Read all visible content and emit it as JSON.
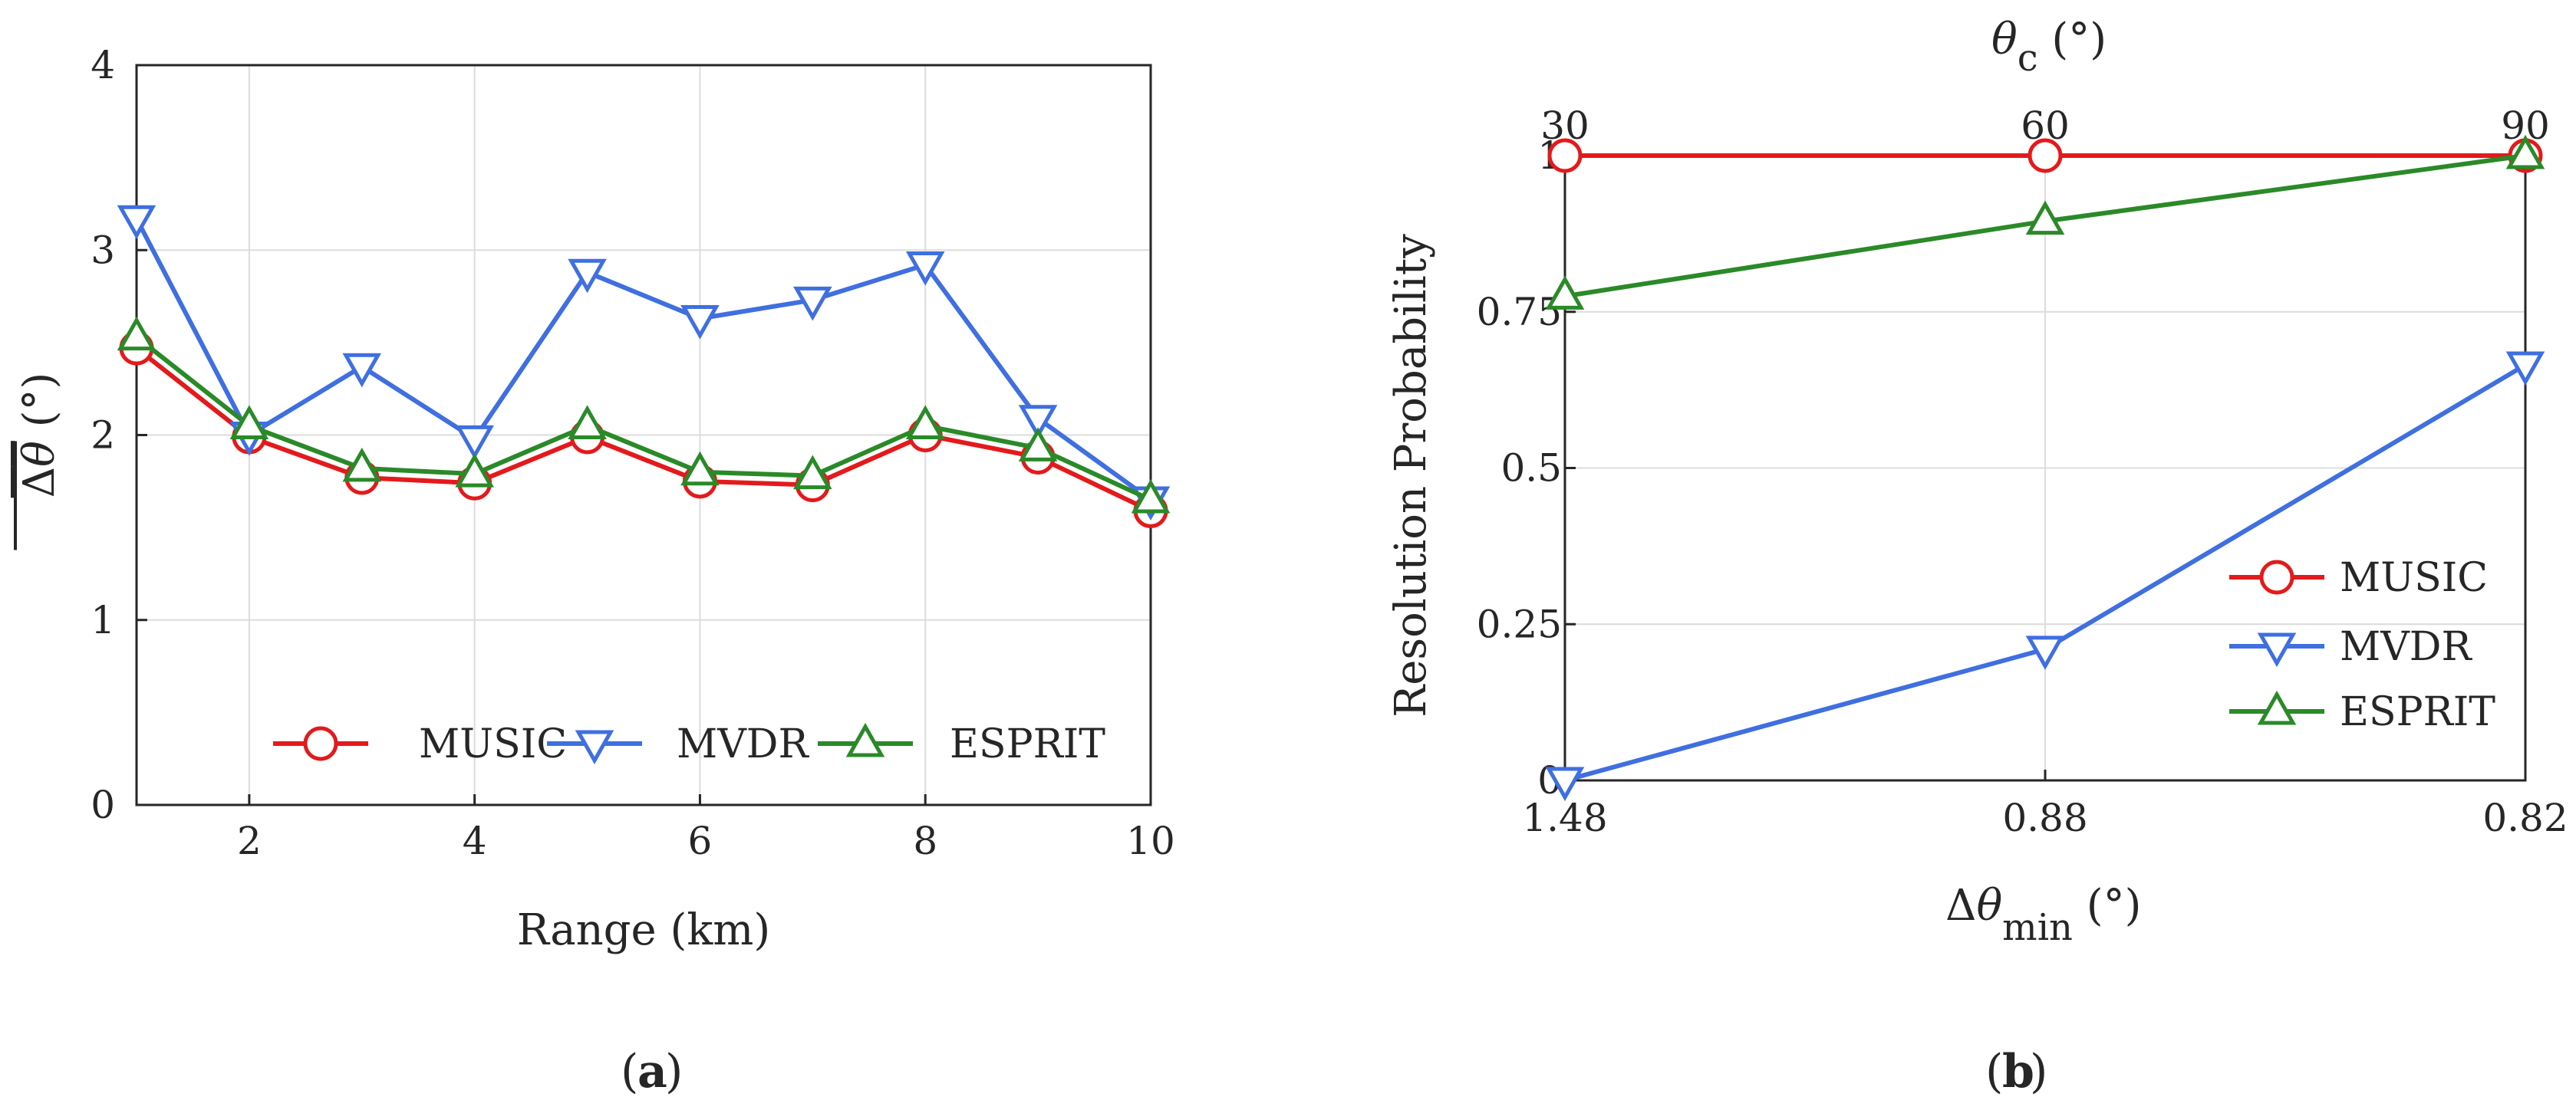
{
  "chart_data": [
    {
      "type": "line",
      "panel_label": "a",
      "xlabel": "Range (km)",
      "ylabel_symbol": "θ",
      "ylabel_prefix": "Δ",
      "ylabel_unit": " (°)",
      "x": [
        1,
        2,
        3,
        4,
        5,
        6,
        7,
        8,
        9,
        10
      ],
      "xlim": [
        1,
        10
      ],
      "ylim": [
        0,
        4
      ],
      "xticks": [
        2,
        4,
        6,
        8,
        10
      ],
      "yticks": [
        0,
        1,
        2,
        3,
        4
      ],
      "grid": true,
      "legend_position": "bottom-center",
      "legend_layout": "horizontal",
      "series": [
        {
          "name": "MUSIC",
          "color": "#e31a1c",
          "marker": "circle",
          "values": [
            2.47,
            1.99,
            1.77,
            1.74,
            1.99,
            1.75,
            1.73,
            2.0,
            1.88,
            1.59
          ]
        },
        {
          "name": "MVDR",
          "color": "#3f6fe0",
          "marker": "triangle-down",
          "values": [
            3.17,
            2.0,
            2.37,
            1.98,
            2.88,
            2.63,
            2.73,
            2.92,
            2.09,
            1.65
          ]
        },
        {
          "name": "ESPRIT",
          "color": "#2a8a28",
          "marker": "triangle-up",
          "values": [
            2.53,
            2.05,
            1.82,
            1.79,
            2.05,
            1.8,
            1.78,
            2.05,
            1.93,
            1.65
          ]
        }
      ]
    },
    {
      "type": "line",
      "panel_label": "b",
      "ylabel": "Resolution Probability",
      "xlabel_prefix": "Δθ",
      "xlabel_sub": "min",
      "xlabel_unit": " (°)",
      "top_xlabel_symbol": "θ",
      "top_xlabel_sub": "c",
      "top_xlabel_unit": " (°)",
      "categories": [
        "1.48",
        "0.88",
        "0.82"
      ],
      "top_categories": [
        "30",
        "60",
        "90"
      ],
      "ylim": [
        0,
        1
      ],
      "yticks": [
        0,
        0.25,
        0.5,
        0.75,
        1
      ],
      "ytick_labels": [
        "0",
        "0.25",
        "0.5",
        "0.75",
        "1"
      ],
      "grid": true,
      "legend_position": "center-right",
      "legend_layout": "vertical",
      "series": [
        {
          "name": "MUSIC",
          "color": "#e31a1c",
          "marker": "circle",
          "values": [
            1.0,
            1.0,
            1.0
          ]
        },
        {
          "name": "MVDR",
          "color": "#3f6fe0",
          "marker": "triangle-down",
          "values": [
            0.0,
            0.21,
            0.665
          ]
        },
        {
          "name": "ESPRIT",
          "color": "#2a8a28",
          "marker": "triangle-up",
          "values": [
            0.775,
            0.895,
            1.0
          ]
        }
      ]
    }
  ]
}
